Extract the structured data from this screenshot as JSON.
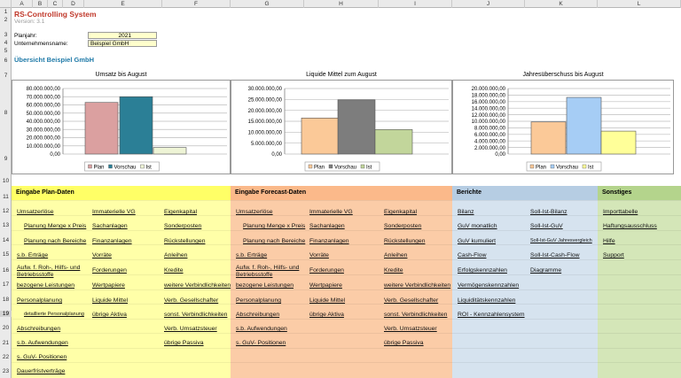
{
  "header": {
    "title": "RS-Controlling System",
    "version": "Version:  3.1",
    "planjahr_label": "Planjahr:",
    "planjahr_value": "2021",
    "unternehmen_label": "Unternehmensname:",
    "unternehmen_value": "Beispiel GmbH",
    "overview": "Übersicht Beispiel GmbH"
  },
  "columns": [
    "A",
    "B",
    "C",
    "D",
    "E",
    "F",
    "G",
    "H",
    "I",
    "J",
    "K",
    "L"
  ],
  "rows": [
    "1",
    "2",
    "3",
    "4",
    "5",
    "6",
    "7",
    "8",
    "9",
    "10",
    "11",
    "12",
    "13",
    "14",
    "15",
    "16",
    "17",
    "18",
    "19",
    "20",
    "21",
    "22",
    "23"
  ],
  "colors": {
    "plan": "#dba0a0",
    "vorschau": "#2b7f96",
    "ist": "#eef4d6",
    "plan2": "#fbc998",
    "vorschau2": "#7d7d7d",
    "ist2": "#c2d69b",
    "plan3": "#fbc998",
    "vorschau3": "#a6cdf5",
    "ist3": "#ffff99",
    "sec_plan": "#ffffa8",
    "sec_forecast": "#fbcca7",
    "sec_berichte": "#d6e3ef",
    "sec_sonstiges": "#d4e6b8",
    "head_plan": "#ffff66",
    "head_forecast": "#fbb98a",
    "head_berichte": "#b6cde3",
    "head_sonstiges": "#b4d48c"
  },
  "chart_data": [
    {
      "type": "bar",
      "title": "Umsatz bis August",
      "categories": [
        "Plan",
        "Vorschau",
        "Ist"
      ],
      "values": [
        63000000,
        70000000,
        8000000
      ],
      "ylim": [
        0,
        80000000
      ],
      "yticks": [
        "80.000.000,00",
        "70.000.000,00",
        "60.000.000,00",
        "50.000.000,00",
        "40.000.000,00",
        "30.000.000,00",
        "20.000.000,00",
        "10.000.000,00",
        "0,00"
      ],
      "legend": [
        "Plan",
        "Vorschau",
        "Ist"
      ]
    },
    {
      "type": "bar",
      "title": "Liquide Mittel zum August",
      "categories": [
        "Plan",
        "Vorschau",
        "Ist"
      ],
      "values": [
        16500000,
        24800000,
        11200000
      ],
      "ylim": [
        0,
        30000000
      ],
      "yticks": [
        "30.000.000,00",
        "25.000.000,00",
        "20.000.000,00",
        "15.000.000,00",
        "10.000.000,00",
        "5.000.000,00",
        "0,00"
      ],
      "legend": [
        "Plan",
        "Vorschau",
        "Ist"
      ]
    },
    {
      "type": "bar",
      "title": "Jahresüberschuss bis August",
      "categories": [
        "Plan",
        "Vorschau",
        "Ist"
      ],
      "values": [
        9800000,
        17300000,
        7000000
      ],
      "ylim": [
        0,
        20000000
      ],
      "yticks": [
        "20.000.000,00",
        "18.000.000,00",
        "16.000.000,00",
        "14.000.000,00",
        "12.000.000,00",
        "10.000.000,00",
        "8.000.000,00",
        "6.000.000,00",
        "4.000.000,00",
        "2.000.000,00",
        "0,00"
      ],
      "legend": [
        "Plan",
        "Vorschau",
        "Ist"
      ]
    }
  ],
  "sections": {
    "plan": {
      "title": "Eingabe Plan-Daten",
      "col1": [
        "Umsatzerlöse",
        "Planung Menge x Preis",
        "Planung nach Bereiche",
        "s.b. Erträge",
        "Aufw. f. Roh-, Hilfs- und Betriebsstoffe",
        "bezogene Leistungen",
        "Personalplanung",
        "detaillierte Personalplanung",
        "Abschreibungen",
        "s.b. Aufwendungen",
        "s. GuV- Positionen",
        "Dauerfristverträge"
      ],
      "col2": [
        "Immaterielle VG",
        "Sachanlagen",
        "Finanzanlagen",
        "Vorräte",
        "Forderungen",
        "Wertpapiere",
        "Liquide Mittel",
        "übrige Aktiva"
      ],
      "col3": [
        "Eigenkapital",
        "Sonderposten",
        "Rückstellungen",
        "Anleihen",
        "Kredite",
        "weitere Verbindlichkeiten",
        "Verb. Gesellschafter",
        "sonst. Verbindlichkeiten",
        "Verb. Umsatzsteuer",
        "übrige Passiva"
      ]
    },
    "forecast": {
      "title": "Eingabe Forecast-Daten",
      "col1": [
        "Umsatzerlöse",
        "Planung Menge x Preis",
        "Planung nach Bereiche",
        "s.b. Erträge",
        "Aufw. f. Roh-, Hilfs- und Betriebsstoffe",
        "bezogene Leistungen",
        "Personalplanung",
        "Abschreibungen",
        "s.b. Aufwendungen",
        "s. GuV- Positionen"
      ],
      "col2": [
        "Immaterielle VG",
        "Sachanlagen",
        "Finanzanlagen",
        "Vorräte",
        "Forderungen",
        "Wertpapiere",
        "Liquide Mittel",
        "übrige Aktiva"
      ],
      "col3": [
        "Eigenkapital",
        "Sonderposten",
        "Rückstellungen",
        "Anleihen",
        "Kredite",
        "weitere Verbindlichkeiten",
        "Verb. Gesellschafter",
        "sonst. Verbindlichkeiten",
        "Verb. Umsatzsteuer",
        "übrige Passiva"
      ]
    },
    "berichte": {
      "title": "Berichte",
      "col1": [
        "Bilanz",
        "GuV monatlich",
        "GuV kumuliert",
        "Cash-Flow",
        "Erfolgskennzahlen",
        "Vermögenskennzahlen",
        "Liquiditätskennzahlen",
        "ROI - Kennzahlensystem"
      ],
      "col2": [
        "Soll-Ist-Bilanz",
        "Soll-Ist-GuV",
        "Soll-Ist-GuV Jahresvergleich",
        "Soll-Ist-Cash-Flow",
        "Diagramme"
      ]
    },
    "sonstiges": {
      "title": "Sonstiges",
      "col1": [
        "Importtabelle",
        "Haftungsausschluss",
        "Hilfe",
        "Support"
      ]
    }
  }
}
